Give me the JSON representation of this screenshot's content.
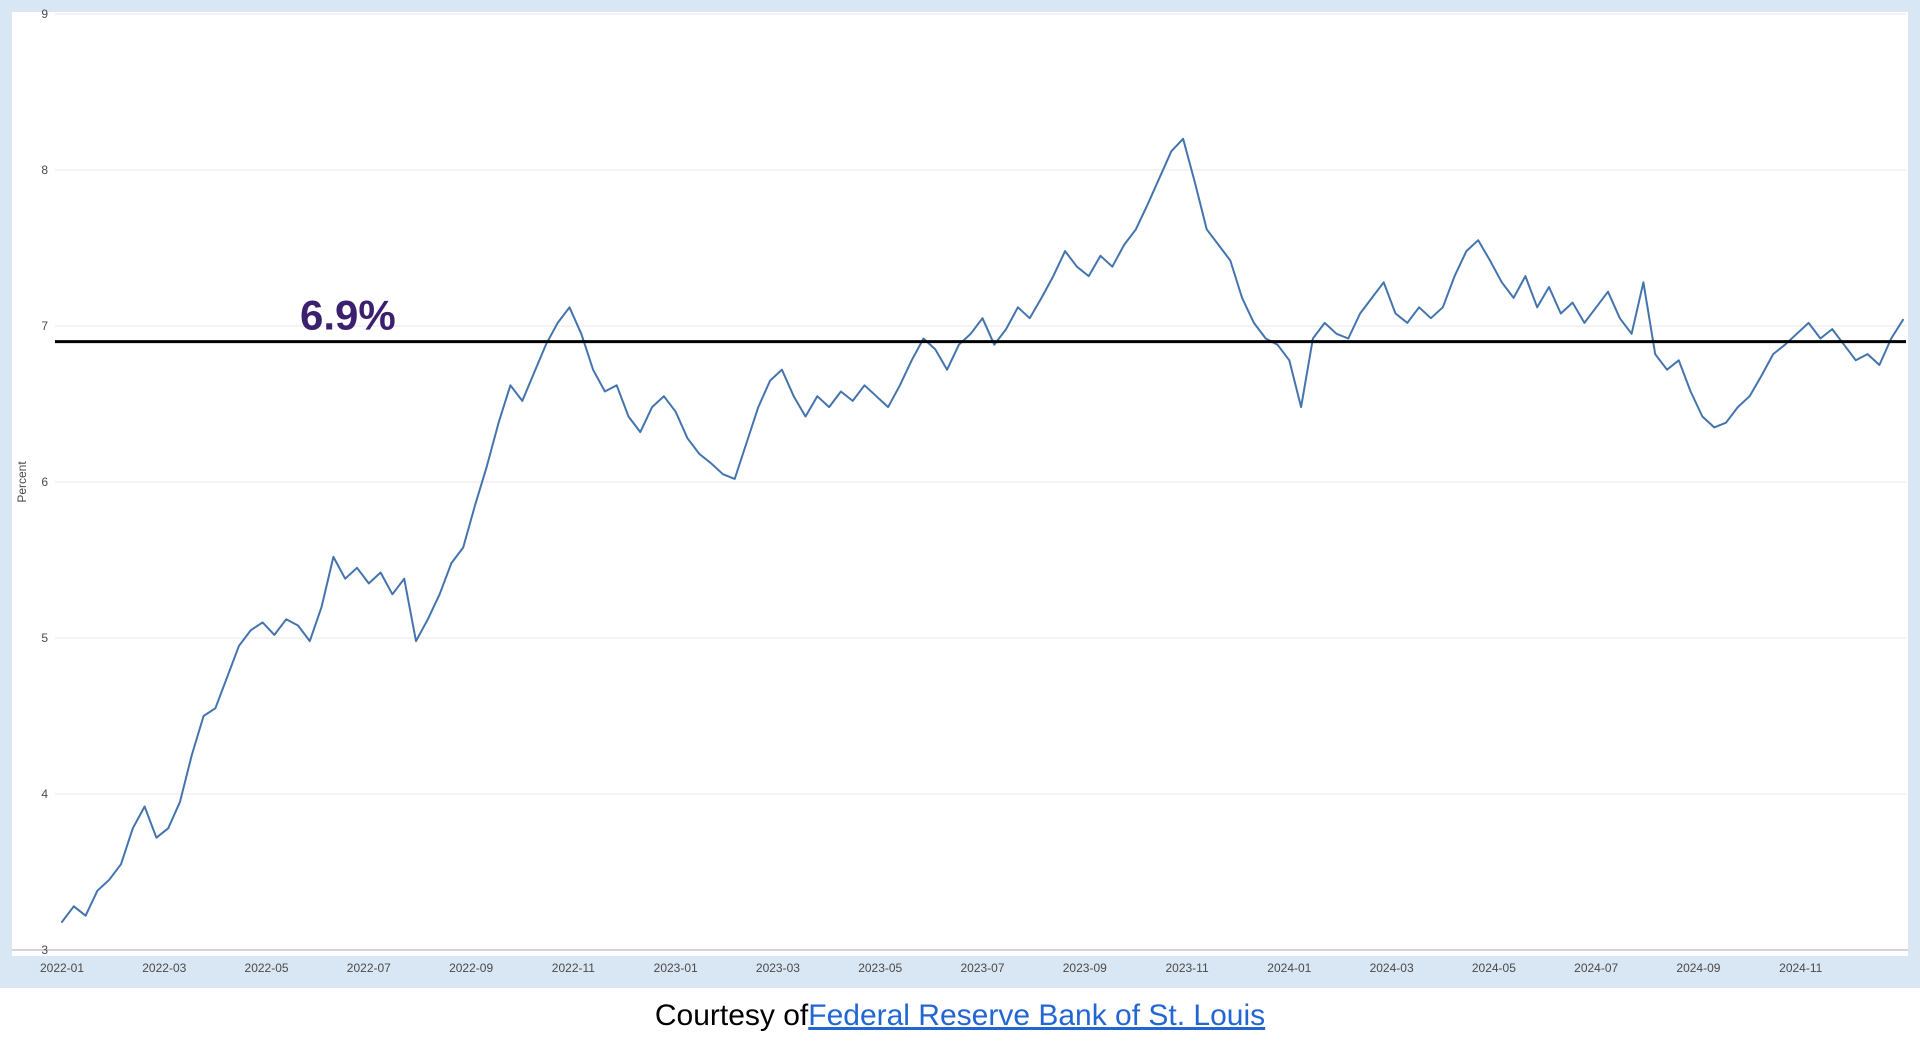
{
  "chart": {
    "colors": {
      "frame_bg": "#d9e6f3",
      "plot_bg": "#ffffff",
      "grid": "#e7e7e7",
      "axis": "#a8a8a8",
      "tick_text": "#4a4a4a",
      "line": "#4474ad",
      "reference_line": "#000000",
      "reference_label": "#3b2070",
      "link": "#2266d3"
    }
  },
  "chart_data": {
    "type": "line",
    "title": "",
    "xlabel": "",
    "ylabel": "Percent",
    "ylim": [
      3,
      9
    ],
    "y_ticks": [
      3,
      4,
      5,
      6,
      7,
      8,
      9
    ],
    "x_tick_labels": [
      "2022-01",
      "2022-03",
      "2022-05",
      "2022-07",
      "2022-09",
      "2022-11",
      "2023-01",
      "2023-03",
      "2023-05",
      "2023-07",
      "2023-09",
      "2023-11",
      "2024-01",
      "2024-03",
      "2024-05",
      "2024-07",
      "2024-09",
      "2024-11"
    ],
    "x_range_months": [
      "2022-01",
      "2024-12"
    ],
    "x_total_months": 36,
    "grid": "horizontal",
    "legend": "none",
    "reference_line": {
      "value": 6.9,
      "label": "6.9%"
    },
    "series": [
      {
        "name": "",
        "cadence": "weekly",
        "values": [
          3.18,
          3.28,
          3.22,
          3.38,
          3.45,
          3.55,
          3.78,
          3.92,
          3.72,
          3.78,
          3.95,
          4.25,
          4.5,
          4.55,
          4.75,
          4.95,
          5.05,
          5.1,
          5.02,
          5.12,
          5.08,
          4.98,
          5.2,
          5.52,
          5.38,
          5.45,
          5.35,
          5.42,
          5.28,
          5.38,
          4.98,
          5.12,
          5.28,
          5.48,
          5.58,
          5.85,
          6.1,
          6.38,
          6.62,
          6.52,
          6.7,
          6.88,
          7.02,
          7.12,
          6.95,
          6.72,
          6.58,
          6.62,
          6.42,
          6.32,
          6.48,
          6.55,
          6.45,
          6.28,
          6.18,
          6.12,
          6.05,
          6.02,
          6.25,
          6.48,
          6.65,
          6.72,
          6.55,
          6.42,
          6.55,
          6.48,
          6.58,
          6.52,
          6.62,
          6.55,
          6.48,
          6.62,
          6.78,
          6.92,
          6.85,
          6.72,
          6.88,
          6.95,
          7.05,
          6.88,
          6.98,
          7.12,
          7.05,
          7.18,
          7.32,
          7.48,
          7.38,
          7.32,
          7.45,
          7.38,
          7.52,
          7.62,
          7.78,
          7.95,
          8.12,
          8.2,
          7.92,
          7.62,
          7.52,
          7.42,
          7.18,
          7.02,
          6.92,
          6.88,
          6.78,
          6.48,
          6.92,
          7.02,
          6.95,
          6.92,
          7.08,
          7.18,
          7.28,
          7.08,
          7.02,
          7.12,
          7.05,
          7.12,
          7.32,
          7.48,
          7.55,
          7.42,
          7.28,
          7.18,
          7.32,
          7.12,
          7.25,
          7.08,
          7.15,
          7.02,
          7.12,
          7.22,
          7.05,
          6.95,
          7.28,
          6.82,
          6.72,
          6.78,
          6.58,
          6.42,
          6.35,
          6.38,
          6.48,
          6.55,
          6.68,
          6.82,
          6.88,
          6.95,
          7.02,
          6.92,
          6.98,
          6.88,
          6.78,
          6.82,
          6.75,
          6.92,
          7.04
        ]
      }
    ]
  },
  "caption": {
    "prefix": "Courtesy of ",
    "link_text": "Federal Reserve Bank of St. Louis"
  }
}
